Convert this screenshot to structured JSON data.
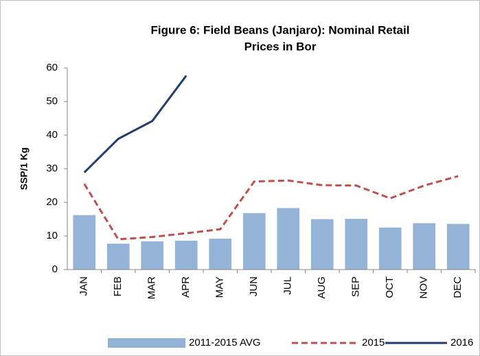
{
  "chart_data": {
    "type": "bar-line",
    "title": [
      "Figure 6: Field Beans (Janjaro): Nominal Retail",
      "Prices in Bor"
    ],
    "ylabel": "SSP/1 Kg",
    "categories": [
      "JAN",
      "FEB",
      "MAR",
      "APR",
      "MAY",
      "JUN",
      "JUL",
      "AUG",
      "SEP",
      "OCT",
      "NOV",
      "DEC"
    ],
    "series": [
      {
        "name": "2011-2015 AVG",
        "kind": "bar",
        "color": "#95b3d7",
        "values": [
          16.2,
          7.7,
          8.4,
          8.6,
          9.2,
          16.8,
          18.3,
          15.0,
          15.1,
          12.5,
          13.8,
          13.6
        ]
      },
      {
        "name": "2015",
        "kind": "line",
        "dashed": true,
        "color": "#c0504d",
        "values": [
          25.5,
          9.0,
          9.7,
          10.8,
          12.0,
          26.2,
          26.5,
          25.1,
          25.0,
          21.2,
          25.0,
          27.8
        ]
      },
      {
        "name": "2016",
        "kind": "line",
        "dashed": false,
        "color": "#1f3e6e",
        "values": [
          28.9,
          38.9,
          44.2,
          57.7,
          null,
          null,
          null,
          null,
          null,
          null,
          null,
          null
        ]
      }
    ],
    "ylim": [
      0,
      60
    ],
    "yticks": [
      0,
      10,
      20,
      30,
      40,
      50,
      60
    ],
    "grid": false,
    "legend": "bottom"
  }
}
